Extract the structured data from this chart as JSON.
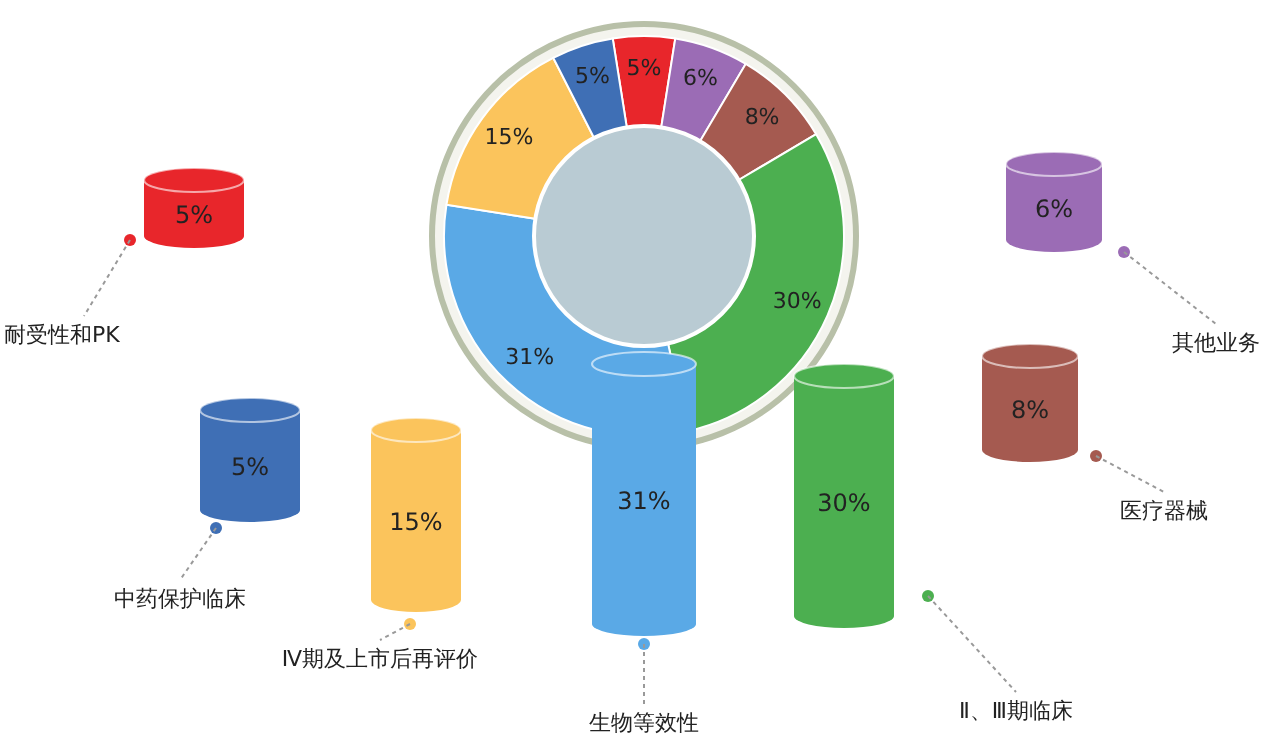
{
  "chart_data": [
    {
      "type": "donut",
      "categories": [
        null,
        null,
        null,
        null,
        null,
        null,
        null
      ],
      "values": [
        5,
        6,
        8,
        30,
        31,
        15,
        5
      ],
      "value_labels": [
        "5%",
        "6%",
        "8%",
        "30%",
        "31%",
        "15%",
        "5%"
      ],
      "colors": [
        "#e8262b",
        "#9b6cb5",
        "#a55a50",
        "#4caf50",
        "#5aa9e6",
        "#fbc45c",
        "#3f6fb5"
      ]
    },
    {
      "type": "other",
      "categories": [
        "耐受性和PK",
        "其他业务",
        "医疗器械",
        "Ⅱ、Ⅲ期临床",
        "生物等效性",
        "Ⅳ期及上市后再评价",
        "中药保护临床"
      ],
      "value_labels": [
        "5%",
        "6%",
        "8%",
        "30%",
        "31%",
        "15%",
        "5%"
      ],
      "colors": [
        "#e8262b",
        "#9b6cb5",
        "#a55a50",
        "#4caf50",
        "#5aa9e6",
        "#fbc45c",
        "#3f6fb5"
      ]
    }
  ]
}
